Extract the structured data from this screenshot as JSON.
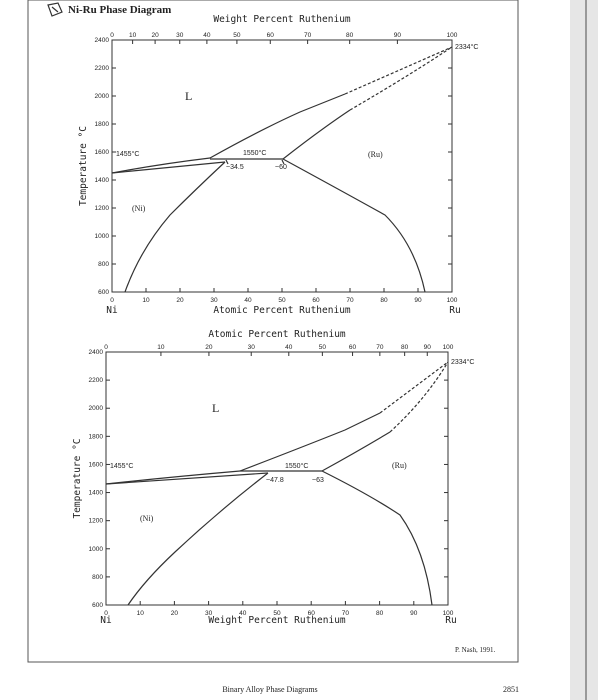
{
  "header": {
    "title": "Ni-Ru Phase Diagram"
  },
  "diagrams": [
    {
      "top_axis_label": "Weight Percent Ruthenium",
      "top_ticks": [
        "0",
        "10",
        "20",
        "30",
        "40",
        "50",
        "60",
        "70",
        "80",
        "90",
        "100"
      ],
      "bottom_axis_label": "Atomic Percent Ruthenium",
      "bottom_ticks": [
        "0",
        "10",
        "20",
        "30",
        "40",
        "50",
        "60",
        "70",
        "80",
        "90",
        "100"
      ],
      "y_axis_label": "Temperature °C",
      "y_ticks": [
        "2400",
        "2200",
        "2000",
        "1800",
        "1600",
        "1400",
        "1200",
        "1000",
        "800",
        "600"
      ],
      "left_element": "Ni",
      "right_element": "Ru",
      "phase_labels": [
        "L",
        "(Ru)",
        "(Ni)"
      ],
      "annotations": [
        "1455°C",
        "1550°C",
        "~34.5",
        "~60",
        "2334°C"
      ]
    },
    {
      "top_axis_label": "Atomic Percent Ruthenium",
      "top_ticks": [
        "0",
        "10",
        "20",
        "30",
        "40",
        "50",
        "60",
        "70",
        "80",
        "90",
        "100"
      ],
      "bottom_axis_label": "Weight Percent Ruthenium",
      "bottom_ticks": [
        "0",
        "10",
        "20",
        "30",
        "40",
        "50",
        "60",
        "70",
        "80",
        "90",
        "100"
      ],
      "y_axis_label": "Temperature °C",
      "y_ticks": [
        "2400",
        "2200",
        "2000",
        "1800",
        "1600",
        "1400",
        "1200",
        "1000",
        "800",
        "600"
      ],
      "left_element": "Ni",
      "right_element": "Ru",
      "phase_labels": [
        "L",
        "(Ru)",
        "(Ni)"
      ],
      "annotations": [
        "1455°C",
        "1550°C",
        "~47.8",
        "~63",
        "2334°C"
      ]
    }
  ],
  "footer": {
    "credit": "P. Nash, 1991.",
    "book": "Binary Alloy Phase Diagrams",
    "page": "2851"
  }
}
